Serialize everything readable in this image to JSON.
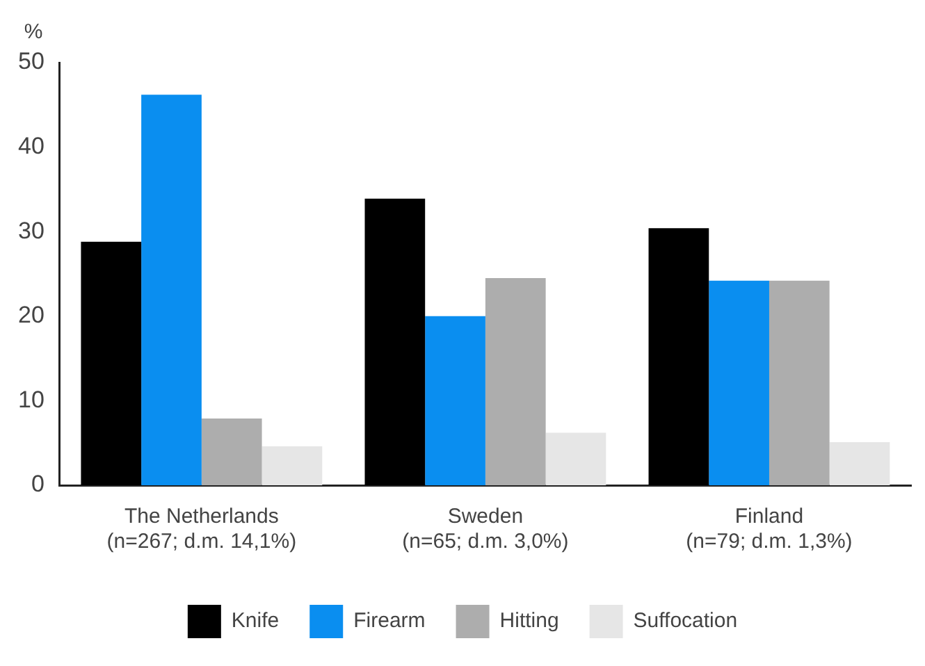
{
  "chart_data": {
    "type": "bar",
    "ylabel": "%",
    "categories": [
      "The Netherlands\n(n=267; d.m. 14,1%)",
      "Sweden\n(n=65; d.m. 3,0%)",
      "Finland\n(n=79; d.m. 1,3%)"
    ],
    "series": [
      {
        "name": "Knife",
        "color": "#000000",
        "values": [
          28.8,
          33.9,
          30.4
        ]
      },
      {
        "name": "Firearm",
        "color": "#0a8ef0",
        "values": [
          46.2,
          20.0,
          24.2
        ]
      },
      {
        "name": "Hitting",
        "color": "#adadad",
        "values": [
          7.9,
          24.5,
          24.2
        ]
      },
      {
        "name": "Suffocation",
        "color": "#e6e6e6",
        "values": [
          4.6,
          6.2,
          5.1
        ]
      }
    ],
    "ylim": [
      0,
      50
    ],
    "yticks": [
      0,
      10,
      20,
      30,
      40,
      50
    ],
    "grid": false,
    "legend": "bottom"
  }
}
